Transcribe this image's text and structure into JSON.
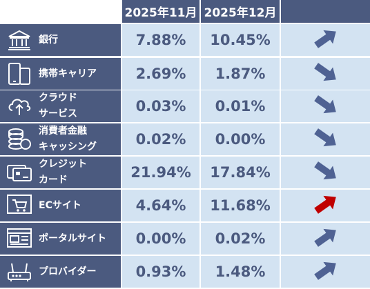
{
  "headers": [
    "2025年11月",
    "2025年12月"
  ],
  "colors": {
    "header_bg": "#4b5a7f",
    "cell_bg": "#d3e3f2",
    "value_text": "#4b5a7f",
    "arrow_default": "#4f6293",
    "arrow_highlight": "#c00000"
  },
  "rows": [
    {
      "label": "銀行",
      "icon": "bank-icon",
      "nov": "7.88%",
      "dec": "10.45%",
      "trend": "up",
      "highlight": false
    },
    {
      "label": "携帯キャリア",
      "icon": "mobile-phone-icon",
      "nov": "2.69%",
      "dec": "1.87%",
      "trend": "down",
      "highlight": false
    },
    {
      "label": "クラウド\nサービス",
      "icon": "cloud-upload-icon",
      "nov": "0.03%",
      "dec": "0.01%",
      "trend": "down",
      "highlight": false
    },
    {
      "label": "消費者金融\nキャッシング",
      "icon": "coins-icon",
      "nov": "0.02%",
      "dec": "0.00%",
      "trend": "down",
      "highlight": false
    },
    {
      "label": "クレジット\nカード",
      "icon": "credit-card-icon",
      "nov": "21.94%",
      "dec": "17.84%",
      "trend": "down",
      "highlight": false
    },
    {
      "label": "ECサイト",
      "icon": "shopping-cart-icon",
      "nov": "4.64%",
      "dec": "11.68%",
      "trend": "up",
      "highlight": true
    },
    {
      "label": "ポータルサイト",
      "icon": "web-portal-icon",
      "nov": "0.00%",
      "dec": "0.02%",
      "trend": "up",
      "highlight": false
    },
    {
      "label": "プロバイダー",
      "icon": "router-icon",
      "nov": "0.93%",
      "dec": "1.48%",
      "trend": "up",
      "highlight": false
    }
  ]
}
